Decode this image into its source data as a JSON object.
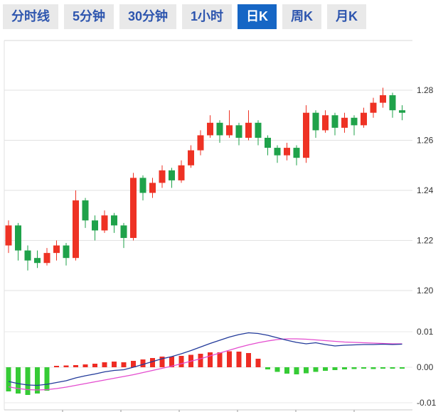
{
  "toolbar": {
    "tabs": [
      {
        "label": "分时线",
        "selected": false
      },
      {
        "label": "5分钟",
        "selected": false
      },
      {
        "label": "30分钟",
        "selected": false
      },
      {
        "label": "1小时",
        "selected": false
      },
      {
        "label": "日K",
        "selected": true
      },
      {
        "label": "周K",
        "selected": false
      },
      {
        "label": "月K",
        "selected": false
      }
    ],
    "selected_bg": "#1666c5",
    "tab_text_color": "#2d55ae"
  },
  "chart_data": {
    "type": "candlestick+macd",
    "selected_timeframe": "日K",
    "main_panel": {
      "ylim": [
        1.192,
        1.301
      ],
      "gridlines": [
        1.28,
        1.26,
        1.24,
        1.22,
        1.2
      ],
      "y_axis_labels": [
        "1.28",
        "1.26",
        "1.24",
        "1.22",
        "1.20"
      ],
      "up_color": "#ee3224",
      "down_color": "#1fa24a",
      "grid_color": "#e2e2e2",
      "axis_text_color": "#333333",
      "candles": [
        [
          1.218,
          1.228,
          1.215,
          1.226
        ],
        [
          1.226,
          1.227,
          1.212,
          1.216
        ],
        [
          1.216,
          1.218,
          1.208,
          1.212
        ],
        [
          1.213,
          1.216,
          1.209,
          1.211
        ],
        [
          1.211,
          1.217,
          1.21,
          1.215
        ],
        [
          1.215,
          1.22,
          1.212,
          1.218
        ],
        [
          1.218,
          1.219,
          1.21,
          1.213
        ],
        [
          1.213,
          1.24,
          1.212,
          1.236
        ],
        [
          1.236,
          1.237,
          1.225,
          1.228
        ],
        [
          1.228,
          1.23,
          1.22,
          1.224
        ],
        [
          1.224,
          1.232,
          1.223,
          1.23
        ],
        [
          1.23,
          1.231,
          1.223,
          1.226
        ],
        [
          1.226,
          1.227,
          1.217,
          1.221
        ],
        [
          1.221,
          1.247,
          1.22,
          1.245
        ],
        [
          1.245,
          1.246,
          1.236,
          1.239
        ],
        [
          1.239,
          1.245,
          1.237,
          1.243
        ],
        [
          1.243,
          1.25,
          1.241,
          1.248
        ],
        [
          1.248,
          1.249,
          1.241,
          1.244
        ],
        [
          1.244,
          1.252,
          1.243,
          1.25
        ],
        [
          1.25,
          1.258,
          1.249,
          1.256
        ],
        [
          1.256,
          1.264,
          1.254,
          1.262
        ],
        [
          1.262,
          1.27,
          1.261,
          1.267
        ],
        [
          1.267,
          1.268,
          1.259,
          1.262
        ],
        [
          1.262,
          1.272,
          1.261,
          1.266
        ],
        [
          1.266,
          1.267,
          1.258,
          1.261
        ],
        [
          1.261,
          1.272,
          1.26,
          1.267
        ],
        [
          1.267,
          1.268,
          1.258,
          1.261
        ],
        [
          1.261,
          1.262,
          1.254,
          1.257
        ],
        [
          1.257,
          1.258,
          1.251,
          1.254
        ],
        [
          1.254,
          1.259,
          1.252,
          1.257
        ],
        [
          1.257,
          1.258,
          1.25,
          1.253
        ],
        [
          1.253,
          1.274,
          1.251,
          1.271
        ],
        [
          1.271,
          1.272,
          1.261,
          1.264
        ],
        [
          1.264,
          1.272,
          1.263,
          1.27
        ],
        [
          1.27,
          1.271,
          1.262,
          1.265
        ],
        [
          1.265,
          1.271,
          1.263,
          1.269
        ],
        [
          1.269,
          1.27,
          1.262,
          1.266
        ],
        [
          1.266,
          1.273,
          1.265,
          1.271
        ],
        [
          1.271,
          1.277,
          1.269,
          1.275
        ],
        [
          1.275,
          1.281,
          1.273,
          1.278
        ],
        [
          1.278,
          1.279,
          1.269,
          1.272
        ],
        [
          1.272,
          1.274,
          1.268,
          1.271
        ]
      ]
    },
    "macd_panel": {
      "ylim": [
        -0.013,
        0.015
      ],
      "gridlines": [
        0.01,
        0,
        -0.01
      ],
      "y_axis_labels": [
        "0.01",
        "0.00",
        "-0.01"
      ],
      "hist_up_color": "#ee2c24",
      "hist_down_color": "#35cb35",
      "dif_color": "#223a9a",
      "dea_color": "#e44ccf",
      "histogram": [
        -0.0068,
        -0.0074,
        -0.0078,
        -0.0074,
        -0.0066,
        0.0004,
        0.0005,
        0.0006,
        0.0008,
        0.001,
        0.0014,
        0.0016,
        0.0014,
        0.0018,
        0.0022,
        0.0026,
        0.003,
        0.003,
        0.0032,
        0.0035,
        0.0038,
        0.0042,
        0.0042,
        0.0045,
        0.0044,
        0.004,
        0.0024,
        -0.0006,
        -0.0013,
        -0.0018,
        -0.002,
        -0.0017,
        -0.0013,
        -0.001,
        -0.0008,
        -0.0006,
        -0.0005,
        -0.0004,
        -0.0005,
        -0.0004,
        -0.0003,
        -0.0004
      ],
      "dif": [
        -0.004,
        -0.0046,
        -0.005,
        -0.0051,
        -0.0048,
        -0.0043,
        -0.0038,
        -0.003,
        -0.0024,
        -0.0019,
        -0.0013,
        -0.0009,
        -0.0007,
        0.0,
        0.0008,
        0.0016,
        0.0024,
        0.003,
        0.0038,
        0.0047,
        0.0057,
        0.0067,
        0.0076,
        0.0085,
        0.0092,
        0.0097,
        0.0095,
        0.009,
        0.0083,
        0.0076,
        0.007,
        0.0066,
        0.0069,
        0.0064,
        0.006,
        0.0062,
        0.0063,
        0.0064,
        0.0064,
        0.0065,
        0.0064,
        0.0065
      ],
      "dea": [
        -0.0055,
        -0.006,
        -0.0063,
        -0.0064,
        -0.0063,
        -0.006,
        -0.0056,
        -0.0051,
        -0.0046,
        -0.0041,
        -0.0036,
        -0.0031,
        -0.0026,
        -0.0021,
        -0.0015,
        -0.0009,
        -0.0003,
        0.0003,
        0.001,
        0.0017,
        0.0024,
        0.0032,
        0.004,
        0.0048,
        0.0056,
        0.0063,
        0.0069,
        0.0074,
        0.0078,
        0.008,
        0.008,
        0.0079,
        0.0077,
        0.0075,
        0.0073,
        0.0071,
        0.007,
        0.0069,
        0.0068,
        0.0067,
        0.0066,
        0.0066
      ]
    }
  }
}
